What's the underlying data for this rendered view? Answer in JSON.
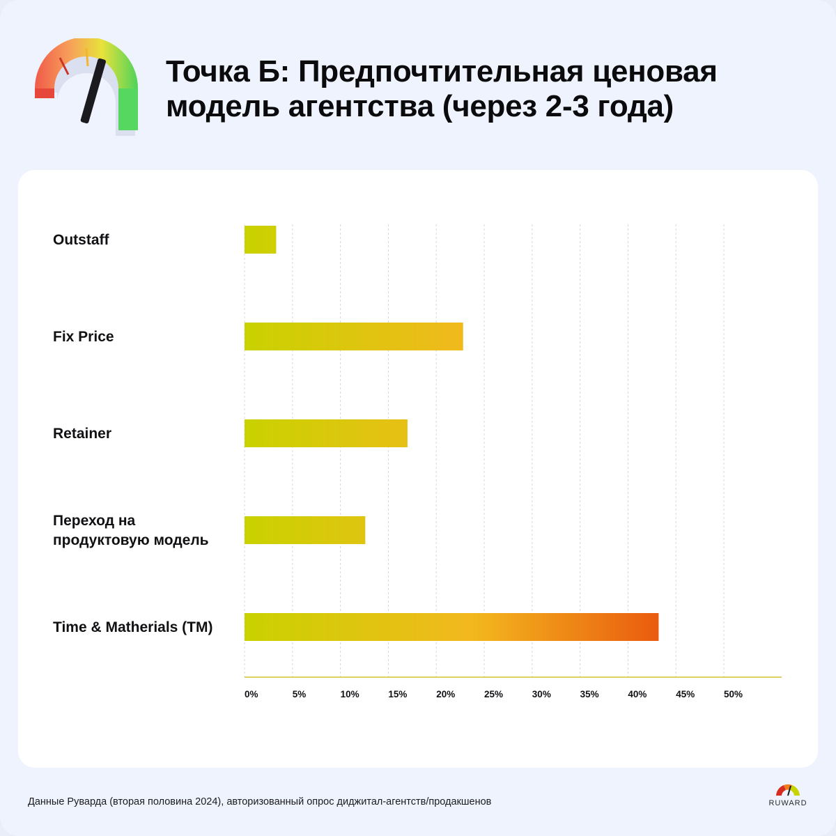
{
  "title_lines": [
    "Точка Б: Предпочтительная ценовая",
    "модель агентства (через 2-3 года)"
  ],
  "footer": {
    "note": "Данные Руварда (вторая половина 2024), авторизованный опрос диджитал-агентств/продакшенов",
    "logo_text": "RUWARD"
  },
  "icons": {
    "header": "speedometer-gauge-icon",
    "logo": "gauge-logo-icon"
  },
  "colors": {
    "bar_start": "#c9d200",
    "bar_mid": "#f3b81e",
    "bar_end": "#ea5b0f",
    "grid": "#d8d8d8",
    "axis": "#d3c230"
  },
  "chart_data": {
    "type": "bar",
    "orientation": "horizontal",
    "categories": [
      [
        "Outstaff"
      ],
      [
        "Fix Price"
      ],
      [
        "Retainer"
      ],
      [
        "Переход на",
        "продуктовую модель"
      ],
      [
        "Time & Matherials (TM)"
      ]
    ],
    "values": [
      3.3,
      22.8,
      17.0,
      12.6,
      43.2
    ],
    "xlim": [
      0,
      56
    ],
    "ticks": [
      0,
      5,
      10,
      15,
      20,
      25,
      30,
      35,
      40,
      45,
      50
    ],
    "tick_labels": [
      "0%",
      "5%",
      "10%",
      "15%",
      "20%",
      "25%",
      "30%",
      "35%",
      "40%",
      "45%",
      "50%"
    ],
    "grid": true,
    "legend": "none"
  }
}
